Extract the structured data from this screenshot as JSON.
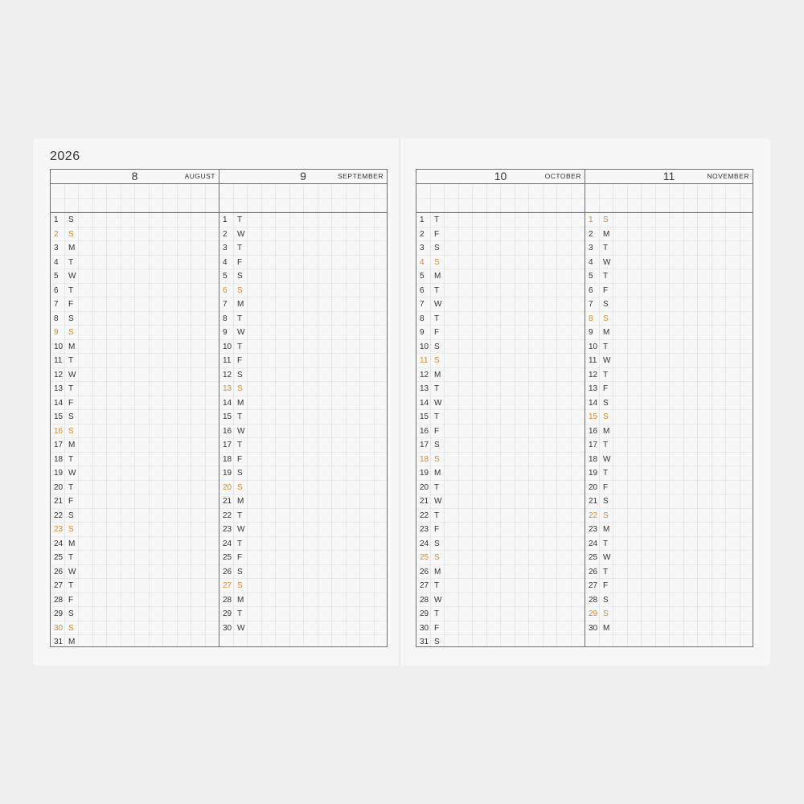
{
  "year": "2026",
  "highlight_color": "#d98a2a",
  "months": [
    {
      "number": "8",
      "name": "AUGUST",
      "weekdays": "SSMTWTFSSMTWTFSSMTWTFSSMTWTFSSM",
      "highlighted": [
        2,
        9,
        16,
        23,
        30
      ]
    },
    {
      "number": "9",
      "name": "SEPTEMBER",
      "weekdays": "TWTFSSMTWTFSSMTWTFSSMTWTFSSMTW",
      "highlighted": [
        6,
        13,
        20,
        27
      ]
    },
    {
      "number": "10",
      "name": "OCTOBER",
      "weekdays": "TFSSMTWTFSSMTWTFSSMTWTFSSMTWTFS",
      "highlighted": [
        4,
        11,
        18,
        25
      ]
    },
    {
      "number": "11",
      "name": "NOVEMBER",
      "weekdays": "SMTWTFSSMTWTFSSMTWTFSSMTWTFSSM",
      "highlighted": [
        1,
        8,
        15,
        22,
        29
      ]
    }
  ]
}
